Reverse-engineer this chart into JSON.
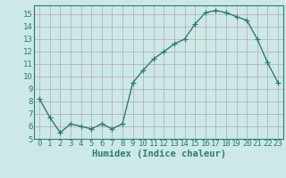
{
  "x": [
    0,
    1,
    2,
    3,
    4,
    5,
    6,
    7,
    8,
    9,
    10,
    11,
    12,
    13,
    14,
    15,
    16,
    17,
    18,
    19,
    20,
    21,
    22,
    23
  ],
  "y": [
    8.2,
    6.7,
    5.5,
    6.2,
    6.0,
    5.8,
    6.2,
    5.8,
    6.2,
    9.5,
    10.5,
    11.4,
    12.0,
    12.6,
    13.0,
    14.2,
    15.1,
    15.3,
    15.1,
    14.8,
    14.5,
    13.0,
    11.1,
    9.5
  ],
  "line_color": "#2e7d6e",
  "marker": "+",
  "marker_size": 4,
  "xlabel": "Humidex (Indice chaleur)",
  "xlim": [
    -0.5,
    23.5
  ],
  "ylim": [
    5,
    15.7
  ],
  "yticks": [
    5,
    6,
    7,
    8,
    9,
    10,
    11,
    12,
    13,
    14,
    15
  ],
  "xticks": [
    0,
    1,
    2,
    3,
    4,
    5,
    6,
    7,
    8,
    9,
    10,
    11,
    12,
    13,
    14,
    15,
    16,
    17,
    18,
    19,
    20,
    21,
    22,
    23
  ],
  "bg_color": "#cce8e8",
  "grid_color": "#b8a8a8",
  "spine_color": "#2e7d6e",
  "tick_color": "#2e7d6e",
  "label_color": "#2e7d6e",
  "line_width": 1.0,
  "font_size_tick": 6.5,
  "font_size_label": 7.5
}
